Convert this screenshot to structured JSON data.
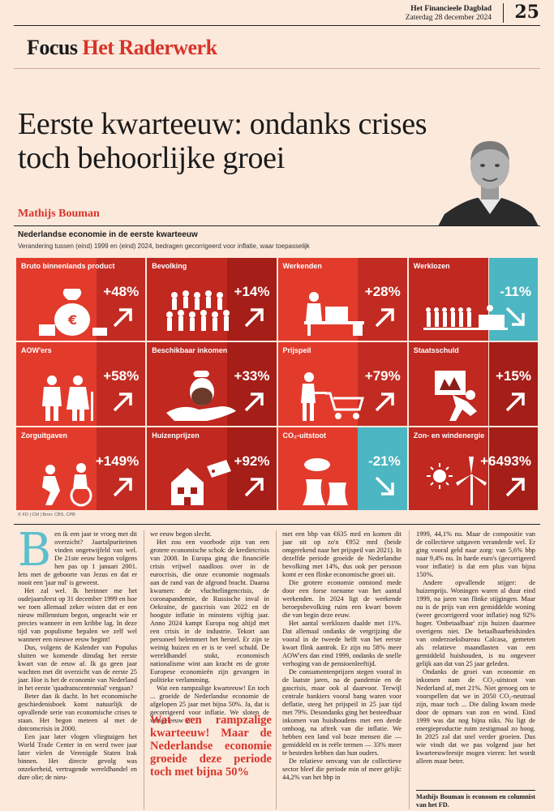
{
  "masthead": {
    "paper": "Het Financieele Dagblad",
    "date": "Zaterdag 28 december 2024",
    "page": "25"
  },
  "section": {
    "focus": "Focus",
    "name": "Het Raderwerk"
  },
  "headline": "Eerste kwarteeuw: ondanks crises toch behoorlijke groei",
  "author": "Mathijs Bouman",
  "infographic": {
    "title": "Nederlandse economie in de eerste kwarteeuw",
    "subtitle": "Verandering tussen (eind) 1999 en (eind) 2024, bedragen gecorrigeerd voor inflatie, waar toepasselijk",
    "credit": "© FD | CM | Bron: CBS, CPB",
    "tiles": [
      {
        "label": "Bruto binnenlands product",
        "value": "+48%",
        "icon": "money-bag-icon",
        "direction": "up"
      },
      {
        "label": "Bevolking",
        "value": "+14%",
        "icon": "crowd-icon",
        "direction": "up"
      },
      {
        "label": "Werkenden",
        "value": "+28%",
        "icon": "office-worker-icon",
        "direction": "up"
      },
      {
        "label": "Werklozen",
        "value": "-11%",
        "icon": "queue-icon",
        "direction": "down"
      },
      {
        "label": "AOW'ers",
        "value": "+58%",
        "icon": "elderly-couple-icon",
        "direction": "up"
      },
      {
        "label": "Beschikbaar inkomen",
        "value": "+33%",
        "icon": "hand-coin-icon",
        "direction": "up"
      },
      {
        "label": "Prijspeil",
        "value": "+79%",
        "icon": "shopping-cart-icon",
        "direction": "up"
      },
      {
        "label": "Staatsschuld",
        "value": "+15%",
        "icon": "carrying-debt-icon",
        "direction": "up"
      },
      {
        "label": "Zorguitgaven",
        "value": "+149%",
        "icon": "wheelchair-care-icon",
        "direction": "up"
      },
      {
        "label": "Huizenprijzen",
        "value": "+92%",
        "icon": "house-price-icon",
        "direction": "up"
      },
      {
        "label": "CO₂-uitstoot",
        "value": "-21%",
        "icon": "power-plant-icon",
        "direction": "down"
      },
      {
        "label": "Zon- en windenergie",
        "value": "+6493%",
        "icon": "wind-solar-icon",
        "direction": "up"
      }
    ]
  },
  "colors": {
    "red": "#e23b2c",
    "dark_red": "#c02820",
    "teal": "#4cb6c2",
    "background": "#fbe9dc"
  },
  "article": {
    "dropcap": "B",
    "col1": [
      "en ik een jaar te vroeg met dit overzicht? Jaartalpuriteinen vinden ongetwijfeld van wel. De 21ste eeuw begon volgens hen pas op 1 januari 2001. Iets met de geboorte van Jezus en dat er nooit een 'jaar nul' is geweest.",
      "Het zal wel. Ik herinner me het oudejaarsfeest op 31 december 1999 en hoe we toen allemaal zeker wisten dat er een nieuw millennium begon, ongeacht wie er precies wanneer in een kribbe lag. In deze tijd van populisme bepalen we zelf wel wanneer een nieuwe eeuw begint!",
      "Dus, volgens de Kalender van Populus sluiten we komende dinsdag het eerste kwart van de eeuw af. Ik ga geen jaar wachten met dit overzicht van de eerste 25 jaar. Hoe is het de economie van Nederland in het eerste 'quadranscentennial' vergaan?",
      "Beter dan ik dacht. In het economische geschiedenisboek komt natuurlijk de opvallende serie van economische crises te staan. Het begon meteen al met de dotcomcrisis in 2000.",
      "Een jaar later vlogen vliegtuigen het World Trade Center in en werd twee jaar later vielen de Verenigde Staten Irak binnen. Het directe gevolg was onzekerheid, vertragende wereldhandel en dure olie; de nieu-"
    ],
    "col2": [
      "we eeuw begon slecht.",
      "Het zou een voorbode zijn van een grotere economische schok: de kredietcrisis van 2008. In Europa ging die financiële crisis vrijwel naadloos over in de eurocrisis, die onze economie nogmaals aan de rand van de afgrond bracht. Daarna kwamen: de vluchtelingencrisis, de coronapandemie, de Russische inval in Oekraïne, de gascrisis van 2022 en de hoogste inflatie in minstens vijftig jaar. Anno 2024 kampt Europa nog altijd met een crisis in de industrie. Tekort aan personeel belemmert het herstel. Er zijn te weinig huizen en er is te veel schuld. De wereldhandel stokt, economisch nationalisme wint aan kracht en de grote Europese economieën zijn gevangen in politieke verlamming.",
      "Wat een rampzalige kwarteeuw! En toch ... groeide de Nederlandse economie de afgelopen 25 jaar met bijna 50%. Ja, dat is gecorrigeerd voor inflatie. We sloten de vorige eeuw af"
    ],
    "quote": "Wat een rampzalige kwarteeuw! Maar de Nederlandse economie groeide deze periode toch met bijna 50%",
    "col3": [
      "met een bbp van €635 mrd en komen dit jaar uit op zo'n €952 mrd (beide omgerekend naar het prijspeil van 2021). In dezelfde periode groeide de Nederlandse bevolking met 14%, dus ook per persoon komt er een flinke economische groei uit.",
      "Die grotere economie ontstond mede door een forse toename van het aantal werkenden. In 2024 ligt de werkende beroepsbevolking ruim een kwart boven die van begin deze eeuw.",
      "Het aantal werklozen daalde met 11%. Dat allemaal ondanks de vergrijzing die vooral in de tweede helft van het eerste kwart flink aantrok. Er zijn nu 58% meer AOW'ers dan eind 1999, ondanks de snelle verhoging van de pensioenleeftijd.",
      "De consumentenprijzen stegen vooral in de laatste jaren, na de pandemie en de gascrisis, maar ook al daarvoor. Terwijl centrale bankiers vooral bang waren voor deflatie, steeg het prijspeil in 25 jaar tijd met 79%. Desondanks ging het besteedbaar inkomen van huishoudens met een derde omhoog, na aftrek van die inflatie. We hebben een land vol boze mensen die — gemiddeld en in reële termen — 33% meer te besteden hebben dan hun ouders.",
      "De relatieve omvang van de collectieve sector bleef die periode min of meer gelijk: 44,2% van het bbp in"
    ],
    "col4": [
      "1999, 44,1% nu. Maar de compositie van de collectieve uitgaven veranderde wel. Er ging vooral geld naar zorg: van 5,6% bbp naar 9,4% nu. In harde euro's (gecorrigeerd voor inflatie) is dat een plus van bijna 150%.",
      "Andere opvallende stijger: de huizenprijs. Woningen waren al duur eind 1999, na jaren van flinke stijgingen. Maar nu is de prijs van een gemiddelde woning (weer gecorrigeerd voor inflatie) nog 92% hoger. 'Onbetaalbaar' zijn huizen daarmee overigens niet. De betaalbaarheidsindex van onderzoeksbureau Calcasa, gemeten als relatieve maandlasten van een gemiddeld huishouden, is nu ongeveer gelijk aan dat van 25 jaar geleden.",
      "Ondanks de groei van economie en inkomen nam de CO₂-uitstoot van Nederland af, met 21%. Niet genoeg om te voorspellen dat we in 2050 CO₂-neutraal zijn, maar toch ... Die daling kwam mede door de opmars van zon en wind. Eind 1999 was dat nog bijna niks. Nu ligt de energieproductie ruim zestigmaal zo hoog. In 2025 zal dat snel verder groeien. Dus wie vindt dat we pas volgend jaar het kwarteeuwfeestje mogen vieren: het wordt alleen maar beter."
    ],
    "signature": "Mathijs Bouman is econoom en columnist van het FD."
  }
}
